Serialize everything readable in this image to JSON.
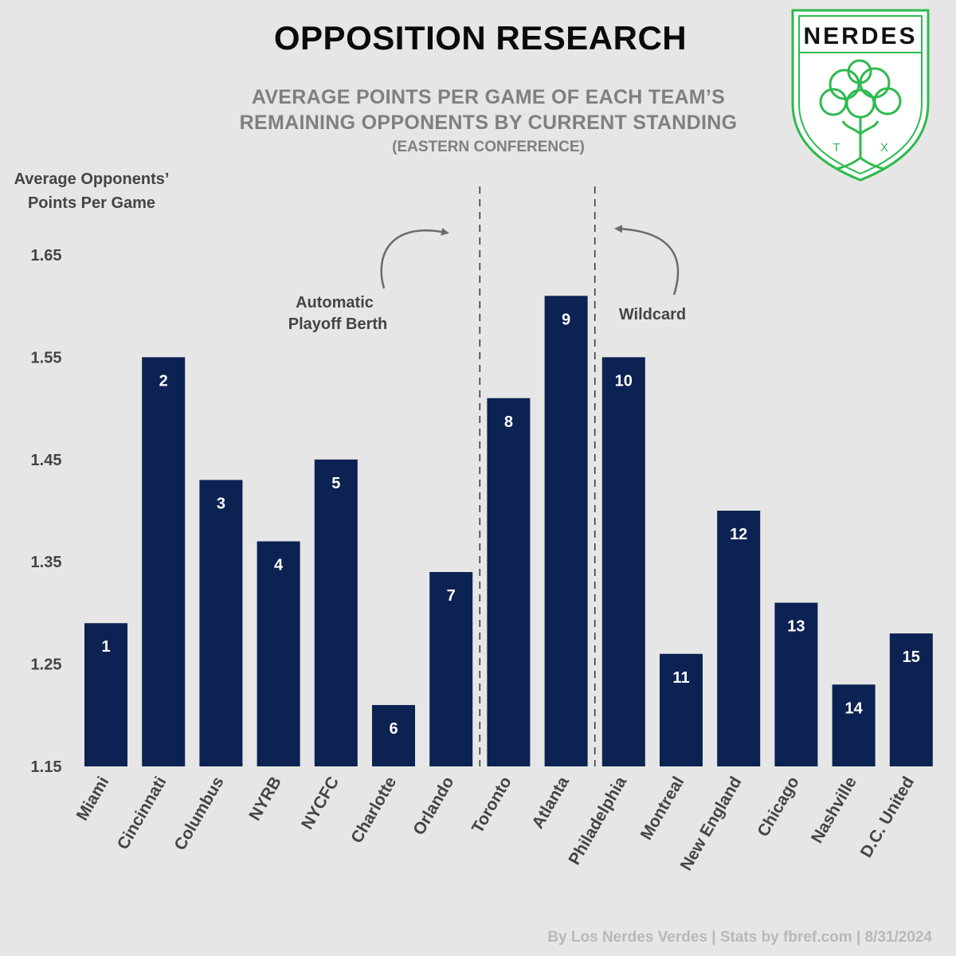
{
  "title": "OPPOSITION RESEARCH",
  "subtitle_line1": "AVERAGE POINTS PER GAME OF EACH TEAM’S",
  "subtitle_line2": "REMAINING OPPONENTS BY CURRENT STANDING",
  "subtitle_line3": "(EASTERN CONFERENCE)",
  "ylabel_line1": "Average Opponents’",
  "ylabel_line2": "Points Per Game",
  "footer": "By Los Nerdes Verdes | Stats by fbref.com | 8/31/2024",
  "logo": {
    "text": "NERDES",
    "left_letter": "T",
    "right_letter": "X",
    "color": "#2dba4e",
    "icon": "brain-tree-icon"
  },
  "annotations": {
    "automatic_line1": "Automatic",
    "automatic_line2": "Playoff Berth",
    "wildcard": "Wildcard"
  },
  "colors": {
    "bar": "#0c2252",
    "background": "#e6e6e6",
    "bar_label": "#ffffff"
  },
  "chart_data": {
    "type": "bar",
    "categories": [
      "Miami",
      "Cincinnati",
      "Columbus",
      "NYRB",
      "NYCFC",
      "Charlotte",
      "Orlando",
      "Toronto",
      "Atlanta",
      "Philadelphia",
      "Montreal",
      "New England",
      "Chicago",
      "Nashville",
      "D.C. United"
    ],
    "values": [
      1.29,
      1.55,
      1.43,
      1.37,
      1.45,
      1.21,
      1.34,
      1.51,
      1.61,
      1.55,
      1.26,
      1.4,
      1.31,
      1.23,
      1.28
    ],
    "bar_labels": [
      "1",
      "2",
      "3",
      "4",
      "5",
      "6",
      "7",
      "8",
      "9",
      "10",
      "11",
      "12",
      "13",
      "14",
      "15"
    ],
    "ylabel": "Average Opponents’ Points Per Game",
    "ylim": [
      1.15,
      1.65
    ],
    "yticks": [
      "1.15",
      "1.25",
      "1.35",
      "1.45",
      "1.55",
      "1.65"
    ],
    "separators_after_rank": [
      7,
      9
    ],
    "grid": false,
    "legend": "none"
  }
}
